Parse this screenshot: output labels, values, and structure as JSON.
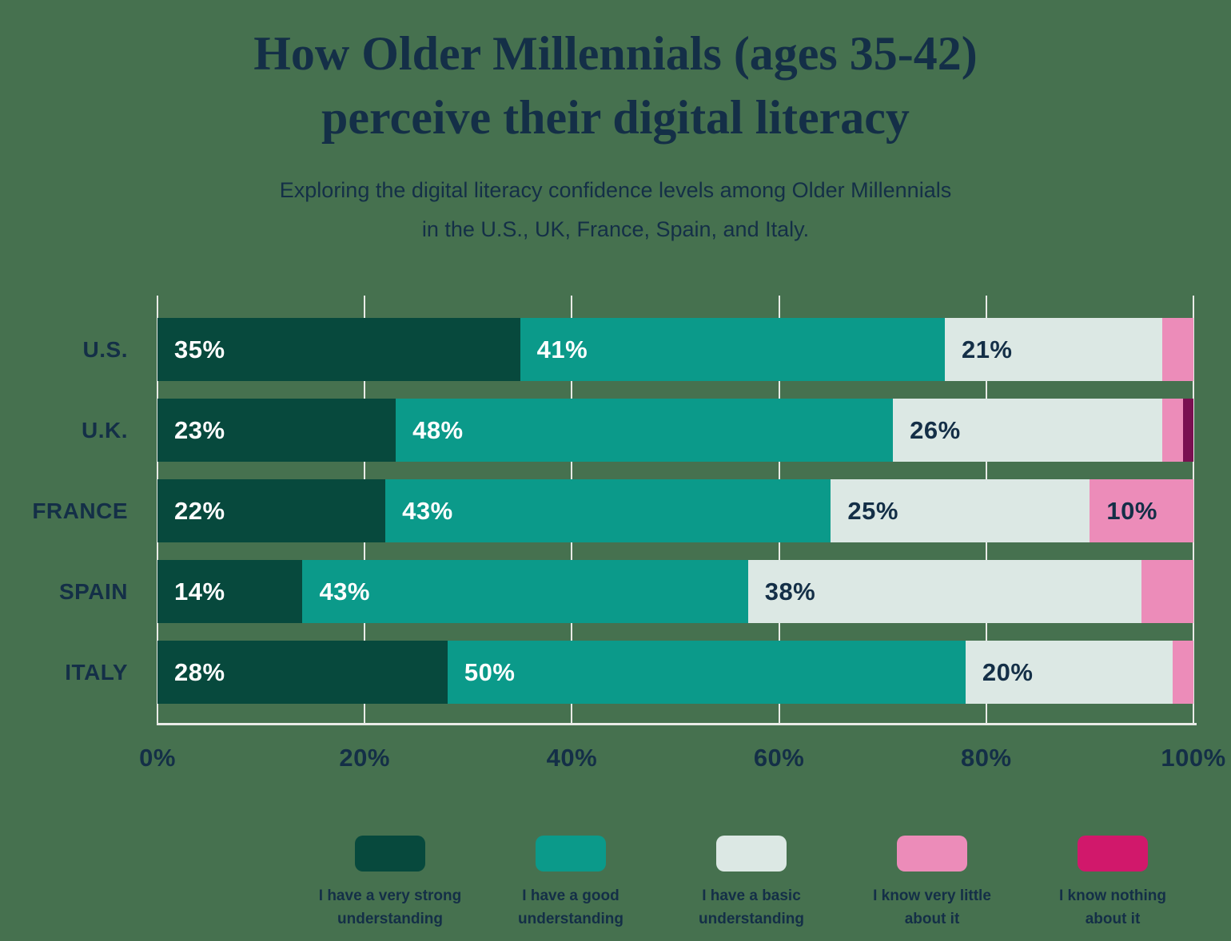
{
  "title": {
    "line1": "How Older Millennials (ages 35-42)",
    "line2": "perceive their digital literacy"
  },
  "subtitle": {
    "line1": "Exploring the digital literacy confidence levels among Older Millennials",
    "line2": "in the U.S., UK, France, Spain, and Italy."
  },
  "colors": {
    "background": "#46714F",
    "ink": "#142F47",
    "grid_line": "#E9EBE7",
    "bar_label_light": "#FFFFFF"
  },
  "chart_data": {
    "type": "bar",
    "stacked": true,
    "orientation": "horizontal",
    "grid": "vertical",
    "legend_position": "bottom",
    "xlim": [
      0,
      100
    ],
    "x_ticks": [
      "0%",
      "20%",
      "40%",
      "60%",
      "80%",
      "100%"
    ],
    "categories": [
      "U.S.",
      "U.K.",
      "FRANCE",
      "SPAIN",
      "ITALY"
    ],
    "series": [
      {
        "name": "I have a very strong understanding",
        "key": "very-strong-understanding",
        "legend_label": "I have a very strong\nunderstanding",
        "color": "#07493D",
        "label_text": "light",
        "values": [
          35,
          23,
          22,
          14,
          28
        ]
      },
      {
        "name": "I have a good understanding",
        "key": "good-understanding",
        "legend_label": "I have a good\nunderstanding",
        "color": "#0B9A8A",
        "label_text": "light",
        "values": [
          41,
          48,
          43,
          43,
          50
        ]
      },
      {
        "name": "I have a basic understanding",
        "key": "basic-understanding",
        "legend_label": "I have a basic\nunderstanding",
        "color": "#DCE8E4",
        "label_text": "dark",
        "values": [
          21,
          26,
          25,
          38,
          20
        ]
      },
      {
        "name": "I know very little about it",
        "key": "know-very-little-about-it",
        "legend_label": "I know very little\nabout it",
        "color": "#EC8CB9",
        "label_text": "dark",
        "values": [
          3,
          2,
          10,
          5,
          2
        ]
      },
      {
        "name": "I know nothing about it",
        "key": "know-nothing-about-it",
        "legend_label": "I know nothing\nabout it",
        "color": "#D1186B",
        "label_text": "dark",
        "values": [
          0,
          1,
          0,
          0,
          0
        ]
      }
    ],
    "rows": [
      {
        "category": "U.S.",
        "segments": [
          {
            "series": 0,
            "value": 35,
            "label": "35%"
          },
          {
            "series": 1,
            "value": 41,
            "label": "41%"
          },
          {
            "series": 2,
            "value": 21,
            "label": "21%"
          },
          {
            "series": 3,
            "value": 3
          }
        ]
      },
      {
        "category": "U.K.",
        "segments": [
          {
            "series": 0,
            "value": 23,
            "label": "23%"
          },
          {
            "series": 1,
            "value": 48,
            "label": "48%"
          },
          {
            "series": 2,
            "value": 26,
            "label": "26%"
          },
          {
            "series": 3,
            "value": 2
          },
          {
            "series": 4,
            "value": 1,
            "color": "#7A1051"
          }
        ]
      },
      {
        "category": "FRANCE",
        "segments": [
          {
            "series": 0,
            "value": 22,
            "label": "22%"
          },
          {
            "series": 1,
            "value": 43,
            "label": "43%"
          },
          {
            "series": 2,
            "value": 25,
            "label": "25%"
          },
          {
            "series": 3,
            "value": 10,
            "label": "10%"
          }
        ]
      },
      {
        "category": "SPAIN",
        "segments": [
          {
            "series": 0,
            "value": 14,
            "label": "14%"
          },
          {
            "series": 1,
            "value": 43,
            "label": "43%"
          },
          {
            "series": 2,
            "value": 38,
            "label": "38%"
          },
          {
            "series": 3,
            "value": 5
          }
        ]
      },
      {
        "category": "ITALY",
        "segments": [
          {
            "series": 0,
            "value": 28,
            "label": "28%"
          },
          {
            "series": 1,
            "value": 50,
            "label": "50%"
          },
          {
            "series": 2,
            "value": 20,
            "label": "20%"
          },
          {
            "series": 3,
            "value": 2
          }
        ]
      }
    ]
  }
}
